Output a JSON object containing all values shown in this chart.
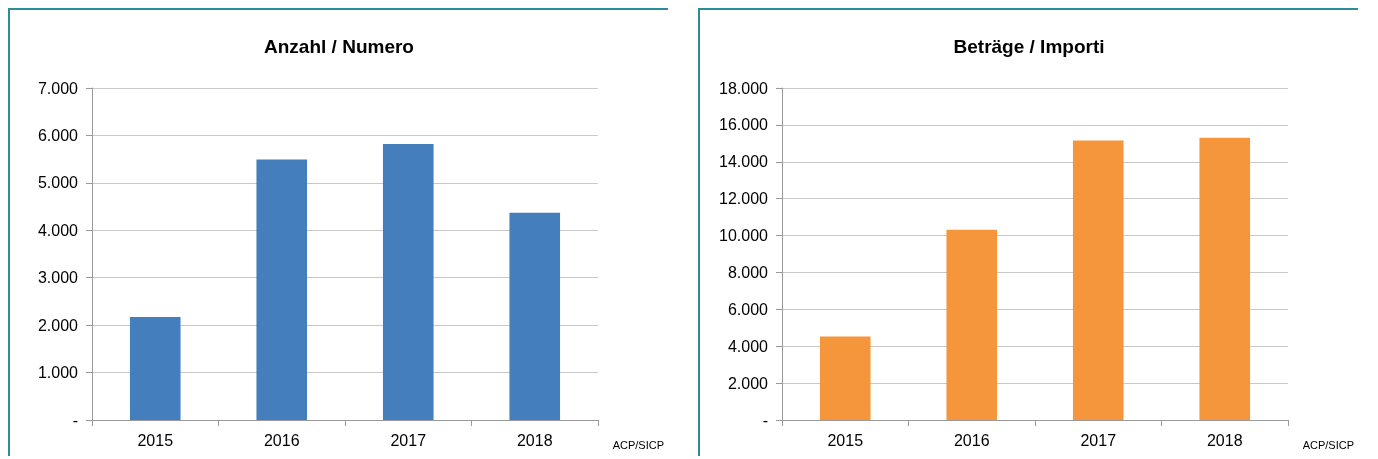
{
  "chart_data": [
    {
      "type": "bar",
      "title": "Anzahl / Numero",
      "categories": [
        "2015",
        "2016",
        "2017",
        "2018"
      ],
      "values": [
        2170,
        5490,
        5820,
        4370
      ],
      "color": "#447ebd",
      "ylim": [
        0,
        7000
      ],
      "yticks": [
        {
          "value": 0,
          "label": "-"
        },
        {
          "value": 1000,
          "label": "1.000"
        },
        {
          "value": 2000,
          "label": "2.000"
        },
        {
          "value": 3000,
          "label": "3.000"
        },
        {
          "value": 4000,
          "label": "4.000"
        },
        {
          "value": 5000,
          "label": "5.000"
        },
        {
          "value": 6000,
          "label": "6.000"
        },
        {
          "value": 7000,
          "label": "7.000"
        }
      ],
      "grid": "y",
      "annotations": [
        "ACP/SICP"
      ]
    },
    {
      "type": "bar",
      "title": "Beträge / Importi",
      "categories": [
        "2015",
        "2016",
        "2017",
        "2018"
      ],
      "values": [
        4530,
        10310,
        15150,
        15300
      ],
      "color": "#f5963c",
      "ylim": [
        0,
        18000
      ],
      "yticks": [
        {
          "value": 0,
          "label": "-"
        },
        {
          "value": 2000,
          "label": "2.000"
        },
        {
          "value": 4000,
          "label": "4.000"
        },
        {
          "value": 6000,
          "label": "6.000"
        },
        {
          "value": 8000,
          "label": "8.000"
        },
        {
          "value": 10000,
          "label": "10.000"
        },
        {
          "value": 12000,
          "label": "12.000"
        },
        {
          "value": 14000,
          "label": "14.000"
        },
        {
          "value": 16000,
          "label": "16.000"
        },
        {
          "value": 18000,
          "label": "18.000"
        }
      ],
      "grid": "y",
      "annotations": [
        "ACP/SICP"
      ]
    }
  ]
}
